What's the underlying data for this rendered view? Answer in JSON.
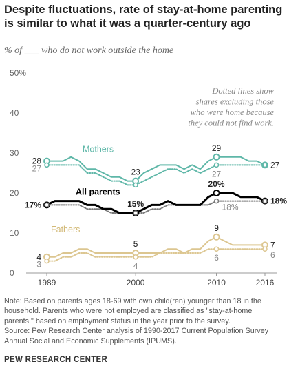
{
  "title": [
    "Despite fluctuations, rate of stay-at-home parenting",
    "is similar to what it was a quarter-century ago"
  ],
  "subtitle": "% of ___ who do not work outside the home",
  "annotation": [
    "Dotted lines show",
    "shares excluding those",
    "who were home because",
    "they could not find work."
  ],
  "chart_data": {
    "type": "line",
    "title": "Despite fluctuations, rate of stay-at-home parenting is similar to what it was a quarter-century ago",
    "ylabel": "% of ___ who do not work outside the home",
    "xlabel": "",
    "ylim": [
      0,
      50
    ],
    "xlim": [
      1989,
      2016
    ],
    "y_ticks": [
      0,
      10,
      20,
      30,
      40,
      50
    ],
    "y_tick_labels": [
      "0",
      "10",
      "20",
      "30",
      "40",
      "50%"
    ],
    "x_ticks": [
      1989,
      2000,
      2010,
      2016
    ],
    "x_tick_labels": [
      "1989",
      "2000",
      "2010",
      "2016"
    ],
    "grid": false,
    "x": [
      1989,
      1990,
      1991,
      1992,
      1993,
      1994,
      1995,
      1996,
      1997,
      1998,
      1999,
      2000,
      2001,
      2002,
      2003,
      2004,
      2005,
      2006,
      2007,
      2008,
      2009,
      2010,
      2011,
      2012,
      2013,
      2014,
      2015,
      2016
    ],
    "series": [
      {
        "name": "Mothers",
        "style": "solid",
        "color": "#5fb7a8",
        "values": [
          28,
          28,
          28,
          29,
          28,
          26,
          26,
          25,
          24,
          24,
          23,
          23,
          25,
          26,
          27,
          27,
          27,
          26,
          27,
          26,
          28,
          29,
          29,
          29,
          29,
          28,
          28,
          27
        ]
      },
      {
        "style": "dotted",
        "color": "#5fb7a8",
        "values": [
          27,
          27,
          27,
          27,
          27,
          25,
          25,
          24,
          23,
          23,
          22,
          22,
          23,
          24,
          25,
          26,
          26,
          25,
          26,
          25,
          26,
          27,
          27,
          27,
          27,
          27,
          27,
          27
        ]
      },
      {
        "name": "All parents",
        "style": "solid",
        "color": "#000000",
        "values": [
          17,
          18,
          18,
          18,
          18,
          17,
          17,
          16,
          16,
          15,
          15,
          15,
          16,
          17,
          17,
          18,
          17,
          17,
          17,
          17,
          19,
          20,
          20,
          20,
          19,
          19,
          19,
          18
        ]
      },
      {
        "style": "dotted",
        "color": "#777777",
        "values": [
          17,
          17,
          17,
          17,
          17,
          16,
          16,
          16,
          15,
          15,
          15,
          15,
          15,
          16,
          16,
          17,
          17,
          17,
          17,
          17,
          17,
          18,
          18,
          18,
          18,
          18,
          18,
          18
        ]
      },
      {
        "name": "Fathers",
        "style": "solid",
        "color": "#dcc690",
        "values": [
          4,
          4,
          5,
          5,
          6,
          6,
          5,
          5,
          5,
          5,
          5,
          5,
          5,
          5,
          5,
          6,
          6,
          5,
          6,
          6,
          8,
          9,
          8,
          7,
          7,
          7,
          7,
          7
        ]
      },
      {
        "style": "dotted",
        "color": "#dcc690",
        "values": [
          3,
          3,
          4,
          4,
          5,
          5,
          4,
          4,
          4,
          4,
          4,
          4,
          4,
          4,
          5,
          5,
          5,
          5,
          5,
          5,
          6,
          6,
          6,
          6,
          6,
          6,
          6,
          6
        ]
      }
    ],
    "point_labels": [
      {
        "series": 0,
        "x": 1989,
        "text": "28",
        "side": "left"
      },
      {
        "series": 1,
        "x": 1989,
        "text": "27",
        "side": "left"
      },
      {
        "series": 0,
        "x": 2000,
        "text": "23",
        "side": "above"
      },
      {
        "series": 0,
        "x": 2010,
        "text": "29",
        "side": "above"
      },
      {
        "series": 1,
        "x": 2010,
        "text": "27",
        "side": "below"
      },
      {
        "series": 0,
        "x": 2016,
        "text": "27",
        "side": "right"
      },
      {
        "series": 2,
        "x": 1989,
        "text": "17%",
        "side": "left"
      },
      {
        "series": 2,
        "x": 2000,
        "text": "15%",
        "side": "above"
      },
      {
        "series": 2,
        "x": 2010,
        "text": "20%",
        "side": "above"
      },
      {
        "series": 3,
        "x": 2010,
        "text": "18%",
        "side": "below-right"
      },
      {
        "series": 2,
        "x": 2016,
        "text": "18%",
        "side": "right"
      },
      {
        "series": 4,
        "x": 1989,
        "text": "4",
        "side": "left"
      },
      {
        "series": 5,
        "x": 1989,
        "text": "3",
        "side": "left"
      },
      {
        "series": 4,
        "x": 2000,
        "text": "5",
        "side": "above"
      },
      {
        "series": 5,
        "x": 2000,
        "text": "4",
        "side": "below"
      },
      {
        "series": 4,
        "x": 2010,
        "text": "9",
        "side": "above"
      },
      {
        "series": 5,
        "x": 2010,
        "text": "6",
        "side": "below"
      },
      {
        "series": 4,
        "x": 2016,
        "text": "7",
        "side": "right"
      },
      {
        "series": 5,
        "x": 2016,
        "text": "6",
        "side": "below-right"
      }
    ],
    "markers_at": [
      1989,
      2000,
      2010,
      2016
    ],
    "series_labels": [
      {
        "series": 0,
        "text": "Mothers"
      },
      {
        "series": 2,
        "text": "All parents"
      },
      {
        "series": 4,
        "text": "Fathers"
      }
    ]
  },
  "note": [
    "Note: Based on parents ages 18-69 with own child(ren) younger than 18 in the",
    "household. Parents who were not employed are classified as \"stay-at-home",
    "parents,\" based on employment status in the year prior to the survey.",
    "Source: Pew Research Center analysis of 1990-2017 Current Population Survey",
    "Annual Social and Economic Supplements (IPUMS)."
  ],
  "org": "PEW RESEARCH CENTER"
}
